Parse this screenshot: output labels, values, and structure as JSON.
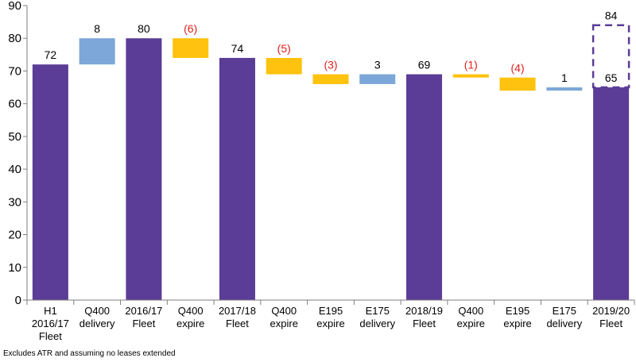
{
  "chart_data": {
    "type": "bar",
    "subtype": "waterfall",
    "ylim": [
      0,
      90
    ],
    "yticks": [
      "0",
      "10",
      "20",
      "30",
      "40",
      "50",
      "60",
      "70",
      "80",
      "90"
    ],
    "grid": false,
    "categories": [
      [
        "H1",
        "2016/17",
        "Fleet"
      ],
      [
        "Q400",
        "delivery"
      ],
      [
        "2016/17",
        "Fleet"
      ],
      [
        "Q400",
        "expire"
      ],
      [
        "2017/18",
        "Fleet"
      ],
      [
        "Q400",
        "expire"
      ],
      [
        "E195",
        "expire"
      ],
      [
        "E175",
        "delivery"
      ],
      [
        "2018/19",
        "Fleet"
      ],
      [
        "Q400",
        "expire"
      ],
      [
        "E195",
        "expire"
      ],
      [
        "E175",
        "delivery"
      ],
      [
        "2019/20",
        "Fleet"
      ]
    ],
    "bars": [
      {
        "kind": "total",
        "start": 0,
        "end": 72,
        "label": "72"
      },
      {
        "kind": "increase",
        "start": 72,
        "end": 80,
        "label": "8"
      },
      {
        "kind": "total",
        "start": 0,
        "end": 80,
        "label": "80"
      },
      {
        "kind": "decrease",
        "start": 80,
        "end": 74,
        "label": "(6)"
      },
      {
        "kind": "total",
        "start": 0,
        "end": 74,
        "label": "74"
      },
      {
        "kind": "decrease",
        "start": 74,
        "end": 69,
        "label": "(5)"
      },
      {
        "kind": "decrease",
        "start": 69,
        "end": 66,
        "label": "(3)"
      },
      {
        "kind": "increase",
        "start": 66,
        "end": 69,
        "label": "3"
      },
      {
        "kind": "total",
        "start": 0,
        "end": 69,
        "label": "69"
      },
      {
        "kind": "decrease",
        "start": 69,
        "end": 68,
        "label": "(1)"
      },
      {
        "kind": "decrease",
        "start": 68,
        "end": 64,
        "label": "(4)"
      },
      {
        "kind": "increase",
        "start": 64,
        "end": 65,
        "label": "1"
      },
      {
        "kind": "total",
        "start": 0,
        "end": 65,
        "label": "65",
        "dashed_extension": {
          "start": 65,
          "end": 84,
          "label": "84"
        }
      }
    ],
    "colors": {
      "total": "#5b3c97",
      "increase": "#7ca7d8",
      "decrease": "#ffc20e",
      "decrease_label": "#e0201b",
      "label": "#000000",
      "dashed": "#5b3c97"
    }
  },
  "footnote": "Excludes ATR and assuming  no leases extended"
}
